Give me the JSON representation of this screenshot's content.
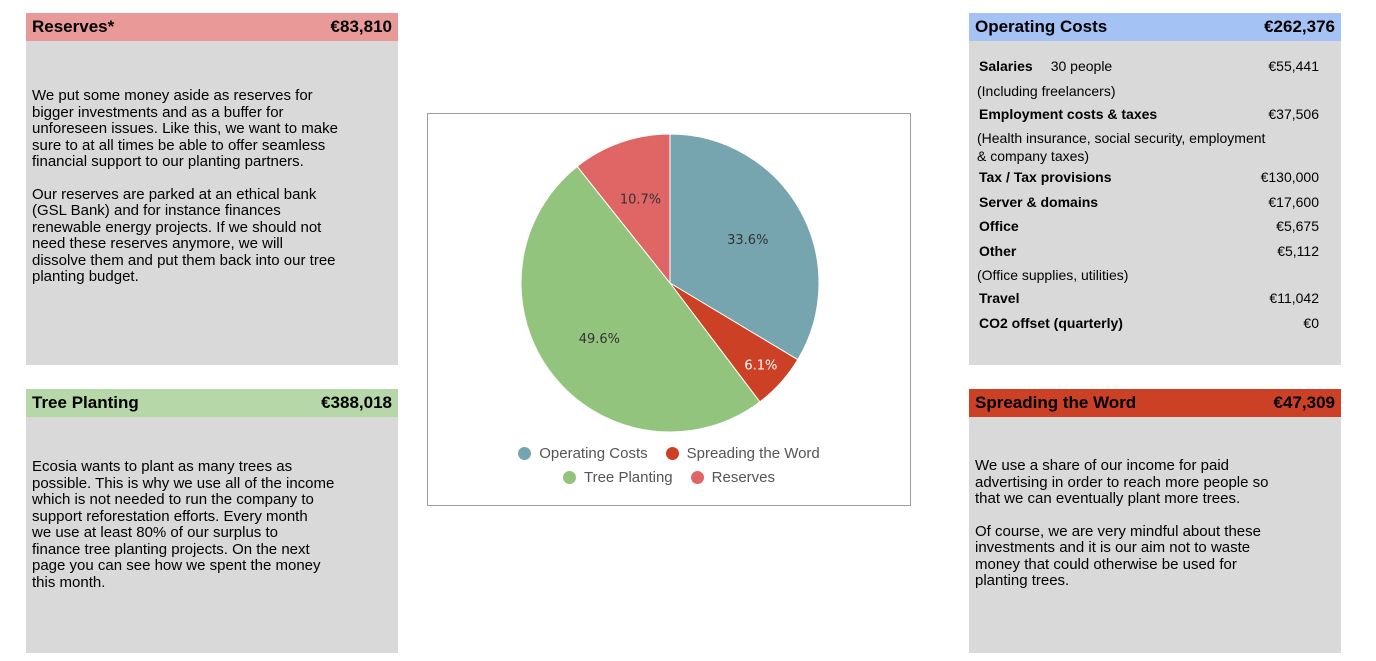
{
  "reserves": {
    "title": "Reserves*",
    "amount": "€83,810",
    "paragraphs": [
      "We put some money aside as reserves for\nbigger investments and as a buffer for\nunforeseen issues. Like this, we want to make\nsure to at all times be able to offer seamless\nfinancial support to our planting partners.",
      "Our reserves are parked at an ethical bank\n(GSL Bank) and for instance finances\nrenewable energy projects. If we should not\nneed these reserves anymore, we will\ndissolve them and put them back into our tree\nplanting budget."
    ]
  },
  "tree_planting": {
    "title": "Tree Planting",
    "amount": "€388,018",
    "paragraphs": [
      "Ecosia wants to plant as many trees as\npossible. This is why we use all of the income\nwhich is not needed to run the company to\nsupport reforestation efforts. Every month\nwe use at least 80% of our surplus to\nfinance tree planting projects. On the next\npage you can see how we spent the money\nthis month."
    ]
  },
  "operating_costs": {
    "title": "Operating Costs",
    "amount": "€262,376",
    "items": [
      {
        "label": "Salaries",
        "extra": "30  people",
        "value": "€55,441",
        "note": "(Including freelancers)"
      },
      {
        "label": "Employment costs & taxes",
        "value": "€37,506",
        "note": "(Health insurance, social security, employment\n& company taxes)"
      },
      {
        "label": "Tax / Tax provisions",
        "value": "€130,000"
      },
      {
        "label": "Server & domains",
        "value": "€17,600"
      },
      {
        "label": "Office",
        "value": "€5,675"
      },
      {
        "label": "Other",
        "value": "€5,112",
        "note": "(Office supplies, utilities)"
      },
      {
        "label": "Travel",
        "value": "€11,042"
      },
      {
        "label": "CO2 offset (quarterly)",
        "value": "€0"
      }
    ]
  },
  "spreading_the_word": {
    "title": "Spreading the Word",
    "amount": "€47,309",
    "paragraphs": [
      "We use a share of our income for paid\nadvertising in order to reach more people so\nthat we can eventually plant more trees.",
      "Of course, we are very mindful about these\ninvestments and it is our aim not to waste\nmoney that could otherwise be used for\nplanting trees."
    ]
  },
  "chart_data": {
    "type": "pie",
    "title": "",
    "categories": [
      "Operating Costs",
      "Spreading the Word",
      "Tree Planting",
      "Reserves"
    ],
    "values": [
      33.6,
      6.1,
      49.6,
      10.7
    ],
    "labels": [
      "33.6%",
      "6.1%",
      "49.6%",
      "10.7%"
    ],
    "colors": [
      "#76a5af",
      "#cc4125",
      "#93c47d",
      "#e06666"
    ],
    "start_angle_deg": 0,
    "direction": "clockwise",
    "legend": {
      "placement": "bottom",
      "rows": [
        [
          "Operating Costs",
          "Spreading the Word"
        ],
        [
          "Tree Planting",
          "Reserves"
        ]
      ]
    },
    "label_colors": [
      "#333333",
      "#ffffff",
      "#333333",
      "#333333"
    ]
  }
}
